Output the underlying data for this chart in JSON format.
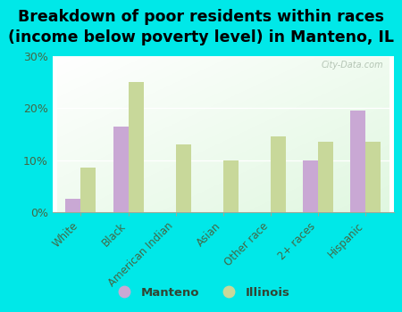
{
  "title": "Breakdown of poor residents within races\n(income below poverty level) in Manteno, IL",
  "categories": [
    "White",
    "Black",
    "American Indian",
    "Asian",
    "Other race",
    "2+ races",
    "Hispanic"
  ],
  "manteno": [
    2.5,
    16.5,
    0,
    0,
    0,
    10.0,
    19.5
  ],
  "illinois": [
    8.5,
    25.0,
    13.0,
    10.0,
    14.5,
    13.5,
    13.5
  ],
  "manteno_color": "#c9a8d4",
  "illinois_color": "#c8d89a",
  "ylim": [
    0,
    30
  ],
  "yticks": [
    0,
    10,
    20,
    30
  ],
  "ytick_labels": [
    "0%",
    "10%",
    "20%",
    "30%"
  ],
  "outer_bg": "#00e8e8",
  "title_fontsize": 12.5,
  "watermark": "City-Data.com",
  "legend_labels": [
    "Manteno",
    "Illinois"
  ]
}
